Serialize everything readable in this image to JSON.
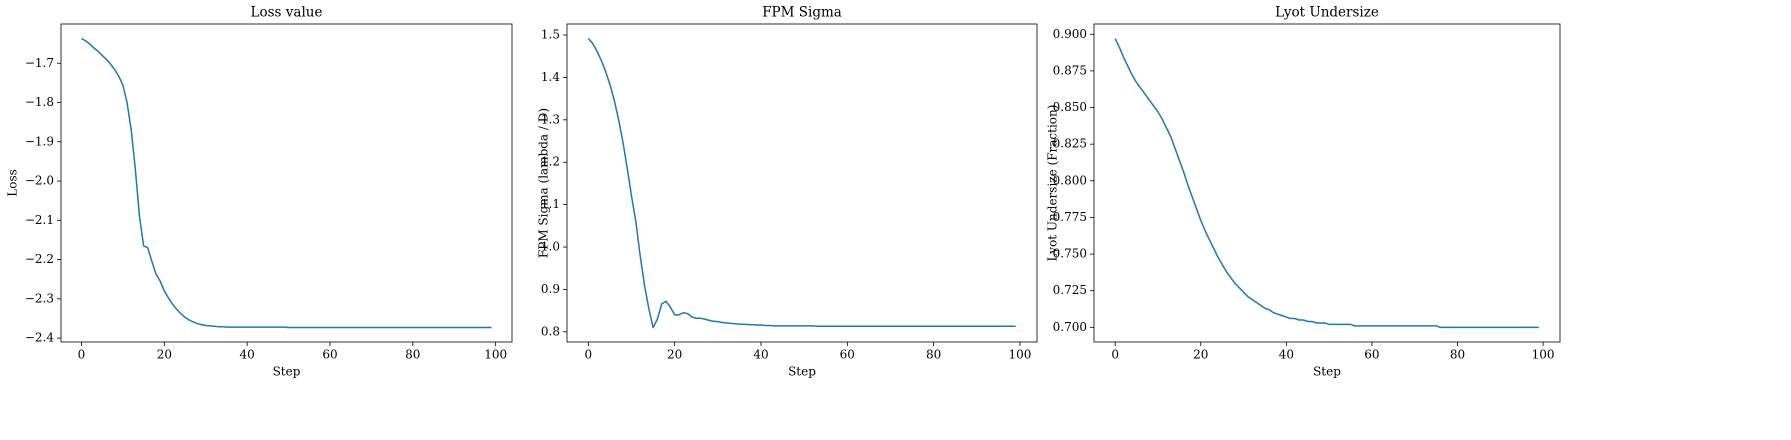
{
  "chart_data": [
    {
      "type": "line",
      "title": "Loss value",
      "xlabel": "Step",
      "ylabel": "Loss",
      "color": "#1f77b4",
      "x": [
        0,
        1,
        2,
        3,
        4,
        5,
        6,
        7,
        8,
        9,
        10,
        11,
        12,
        13,
        14,
        15,
        16,
        17,
        18,
        19,
        20,
        21,
        22,
        23,
        24,
        25,
        26,
        27,
        28,
        29,
        30,
        31,
        32,
        33,
        34,
        35,
        36,
        37,
        38,
        39,
        40,
        41,
        42,
        43,
        44,
        45,
        46,
        47,
        48,
        49,
        50,
        51,
        52,
        53,
        54,
        55,
        56,
        57,
        58,
        59,
        60,
        61,
        62,
        63,
        64,
        65,
        66,
        67,
        68,
        69,
        70,
        71,
        72,
        73,
        74,
        75,
        76,
        77,
        78,
        79,
        80,
        81,
        82,
        83,
        84,
        85,
        86,
        87,
        88,
        89,
        90,
        91,
        92,
        93,
        94,
        95,
        96,
        97,
        98,
        99
      ],
      "values": [
        -1.637,
        -1.643,
        -1.651,
        -1.661,
        -1.67,
        -1.68,
        -1.69,
        -1.702,
        -1.716,
        -1.733,
        -1.756,
        -1.8,
        -1.87,
        -1.97,
        -2.09,
        -2.165,
        -2.17,
        -2.205,
        -2.237,
        -2.255,
        -2.28,
        -2.298,
        -2.314,
        -2.327,
        -2.338,
        -2.347,
        -2.354,
        -2.359,
        -2.363,
        -2.366,
        -2.368,
        -2.369,
        -2.37,
        -2.371,
        -2.371,
        -2.372,
        -2.372,
        -2.372,
        -2.372,
        -2.372,
        -2.372,
        -2.372,
        -2.372,
        -2.372,
        -2.372,
        -2.372,
        -2.372,
        -2.372,
        -2.372,
        -2.372,
        -2.373,
        -2.373,
        -2.373,
        -2.373,
        -2.373,
        -2.373,
        -2.373,
        -2.373,
        -2.373,
        -2.373,
        -2.373,
        -2.373,
        -2.373,
        -2.373,
        -2.373,
        -2.373,
        -2.373,
        -2.373,
        -2.373,
        -2.373,
        -2.373,
        -2.373,
        -2.373,
        -2.373,
        -2.373,
        -2.373,
        -2.373,
        -2.373,
        -2.373,
        -2.373,
        -2.373,
        -2.373,
        -2.373,
        -2.373,
        -2.373,
        -2.373,
        -2.373,
        -2.373,
        -2.373,
        -2.373,
        -2.373,
        -2.373,
        -2.373,
        -2.373,
        -2.373,
        -2.373,
        -2.373,
        -2.373,
        -2.373,
        -2.373
      ],
      "xlim": [
        -4.95,
        103.95
      ],
      "xticks": [
        0,
        20,
        40,
        60,
        80,
        100
      ],
      "ylim": [
        -2.41,
        -1.6
      ],
      "yticks": [
        {
          "value": -2.4,
          "label": "−2.4"
        },
        {
          "value": -2.3,
          "label": "−2.3"
        },
        {
          "value": -2.2,
          "label": "−2.2"
        },
        {
          "value": -2.1,
          "label": "−2.1"
        },
        {
          "value": -2.0,
          "label": "−2.0"
        },
        {
          "value": -1.9,
          "label": "−1.9"
        },
        {
          "value": -1.8,
          "label": "−1.8"
        },
        {
          "value": -1.7,
          "label": "−1.7"
        }
      ]
    },
    {
      "type": "line",
      "title": "FPM Sigma",
      "xlabel": "Step",
      "ylabel": "FPM Sigma (lambda / D)",
      "color": "#1f77b4",
      "x": [
        0,
        1,
        2,
        3,
        4,
        5,
        6,
        7,
        8,
        9,
        10,
        11,
        12,
        13,
        14,
        15,
        16,
        17,
        18,
        19,
        20,
        21,
        22,
        23,
        24,
        25,
        26,
        27,
        28,
        29,
        30,
        31,
        32,
        33,
        34,
        35,
        36,
        37,
        38,
        39,
        40,
        41,
        42,
        43,
        44,
        45,
        46,
        47,
        48,
        49,
        50,
        51,
        52,
        53,
        54,
        55,
        56,
        57,
        58,
        59,
        60,
        61,
        62,
        63,
        64,
        65,
        66,
        67,
        68,
        69,
        70,
        71,
        72,
        73,
        74,
        75,
        76,
        77,
        78,
        79,
        80,
        81,
        82,
        83,
        84,
        85,
        86,
        87,
        88,
        89,
        90,
        91,
        92,
        93,
        94,
        95,
        96,
        97,
        98,
        99
      ],
      "values": [
        1.492,
        1.48,
        1.462,
        1.44,
        1.414,
        1.383,
        1.346,
        1.301,
        1.248,
        1.186,
        1.12,
        1.06,
        0.98,
        0.91,
        0.855,
        0.81,
        0.83,
        0.866,
        0.872,
        0.858,
        0.84,
        0.84,
        0.845,
        0.843,
        0.835,
        0.832,
        0.832,
        0.83,
        0.827,
        0.825,
        0.824,
        0.822,
        0.821,
        0.82,
        0.819,
        0.818,
        0.818,
        0.817,
        0.817,
        0.816,
        0.816,
        0.815,
        0.815,
        0.814,
        0.814,
        0.814,
        0.814,
        0.814,
        0.814,
        0.814,
        0.814,
        0.814,
        0.814,
        0.813,
        0.813,
        0.813,
        0.813,
        0.813,
        0.813,
        0.813,
        0.813,
        0.813,
        0.813,
        0.813,
        0.813,
        0.813,
        0.813,
        0.813,
        0.813,
        0.813,
        0.813,
        0.813,
        0.813,
        0.813,
        0.813,
        0.813,
        0.813,
        0.813,
        0.813,
        0.813,
        0.813,
        0.813,
        0.813,
        0.813,
        0.813,
        0.813,
        0.813,
        0.813,
        0.813,
        0.813,
        0.813,
        0.813,
        0.813,
        0.813,
        0.813,
        0.813,
        0.813,
        0.813,
        0.813,
        0.813
      ],
      "xlim": [
        -4.95,
        103.95
      ],
      "xticks": [
        0,
        20,
        40,
        60,
        80,
        100
      ],
      "ylim": [
        0.776,
        1.526
      ],
      "yticks": [
        0.8,
        0.9,
        {
          "value": 1.0,
          "label": "1.0"
        },
        1.1,
        1.2,
        1.3,
        1.4,
        1.5
      ]
    },
    {
      "type": "line",
      "title": "Lyot Undersize",
      "xlabel": "Step",
      "ylabel": "Lyot Undersize (Fraction)",
      "color": "#1f77b4",
      "x": [
        0,
        1,
        2,
        3,
        4,
        5,
        6,
        7,
        8,
        9,
        10,
        11,
        12,
        13,
        14,
        15,
        16,
        17,
        18,
        19,
        20,
        21,
        22,
        23,
        24,
        25,
        26,
        27,
        28,
        29,
        30,
        31,
        32,
        33,
        34,
        35,
        36,
        37,
        38,
        39,
        40,
        41,
        42,
        43,
        44,
        45,
        46,
        47,
        48,
        49,
        50,
        51,
        52,
        53,
        54,
        55,
        56,
        57,
        58,
        59,
        60,
        61,
        62,
        63,
        64,
        65,
        66,
        67,
        68,
        69,
        70,
        71,
        72,
        73,
        74,
        75,
        76,
        77,
        78,
        79,
        80,
        81,
        82,
        83,
        84,
        85,
        86,
        87,
        88,
        89,
        90,
        91,
        92,
        93,
        94,
        95,
        96,
        97,
        98,
        99
      ],
      "values": [
        0.897,
        0.891,
        0.884,
        0.878,
        0.872,
        0.867,
        0.863,
        0.859,
        0.855,
        0.851,
        0.847,
        0.842,
        0.836,
        0.83,
        0.822,
        0.814,
        0.806,
        0.797,
        0.789,
        0.781,
        0.773,
        0.766,
        0.76,
        0.754,
        0.748,
        0.743,
        0.738,
        0.734,
        0.73,
        0.727,
        0.724,
        0.721,
        0.719,
        0.717,
        0.715,
        0.713,
        0.712,
        0.71,
        0.709,
        0.708,
        0.707,
        0.706,
        0.706,
        0.705,
        0.705,
        0.704,
        0.704,
        0.703,
        0.703,
        0.703,
        0.702,
        0.702,
        0.702,
        0.702,
        0.702,
        0.702,
        0.701,
        0.701,
        0.701,
        0.701,
        0.701,
        0.701,
        0.701,
        0.701,
        0.701,
        0.701,
        0.701,
        0.701,
        0.701,
        0.701,
        0.701,
        0.701,
        0.701,
        0.701,
        0.701,
        0.701,
        0.7,
        0.7,
        0.7,
        0.7,
        0.7,
        0.7,
        0.7,
        0.7,
        0.7,
        0.7,
        0.7,
        0.7,
        0.7,
        0.7,
        0.7,
        0.7,
        0.7,
        0.7,
        0.7,
        0.7,
        0.7,
        0.7,
        0.7,
        0.7
      ],
      "xlim": [
        -4.95,
        103.95
      ],
      "xticks": [
        0,
        20,
        40,
        60,
        80,
        100
      ],
      "ylim": [
        0.69,
        0.907
      ],
      "yticks": [
        {
          "value": 0.7,
          "label": "0.700"
        },
        0.725,
        {
          "value": 0.75,
          "label": "0.750"
        },
        0.775,
        {
          "value": 0.8,
          "label": "0.800"
        },
        0.825,
        {
          "value": 0.85,
          "label": "0.850"
        },
        0.875,
        {
          "value": 0.9,
          "label": "0.900"
        }
      ]
    }
  ]
}
